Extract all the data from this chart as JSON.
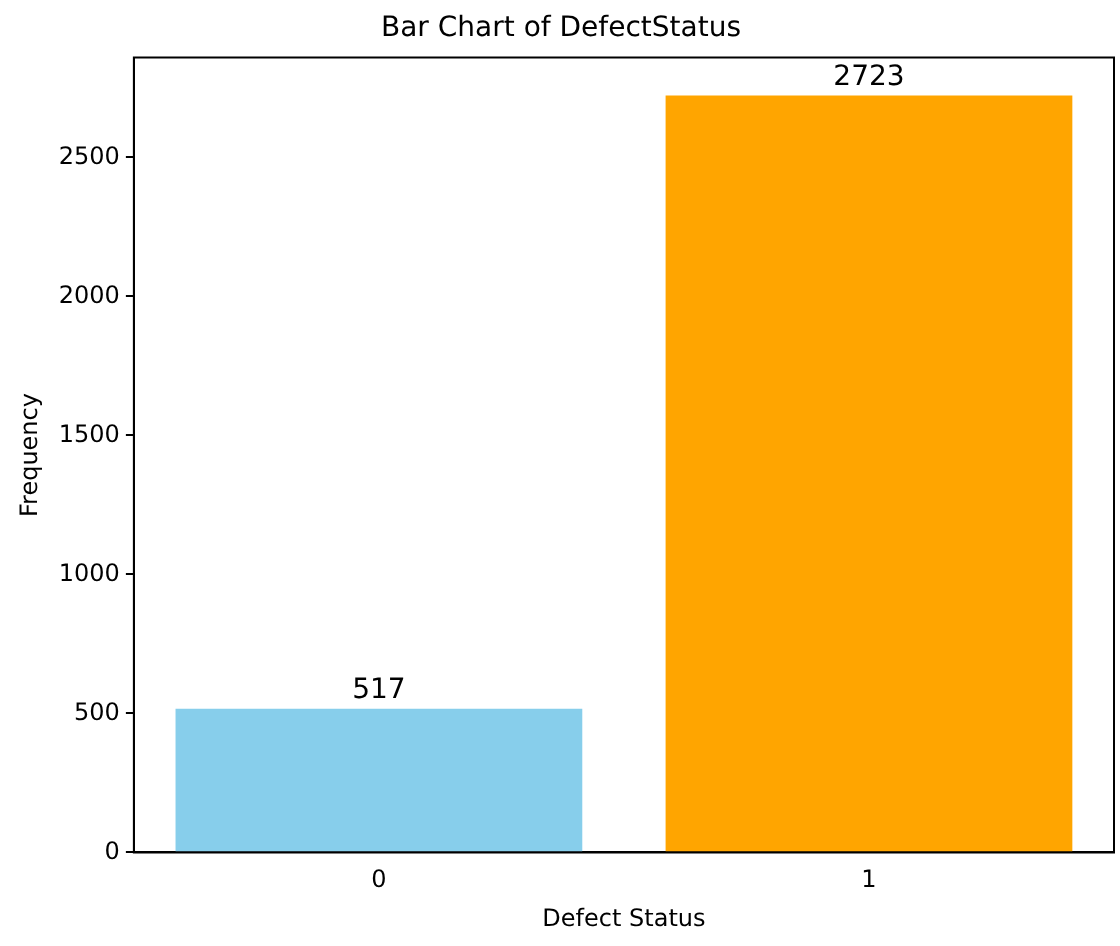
{
  "chart_data": {
    "type": "bar",
    "title": "Bar Chart of DefectStatus",
    "xlabel": "Defect Status",
    "ylabel": "Frequency",
    "categories": [
      "0",
      "1"
    ],
    "values": [
      517,
      2723
    ],
    "colors": [
      "#87ceeb",
      "#ffa500"
    ],
    "ylim": [
      0,
      2859
    ],
    "yticks": [
      0,
      500,
      1000,
      1500,
      2000,
      2500
    ],
    "data_labels": true,
    "grid": false,
    "legend": false
  }
}
